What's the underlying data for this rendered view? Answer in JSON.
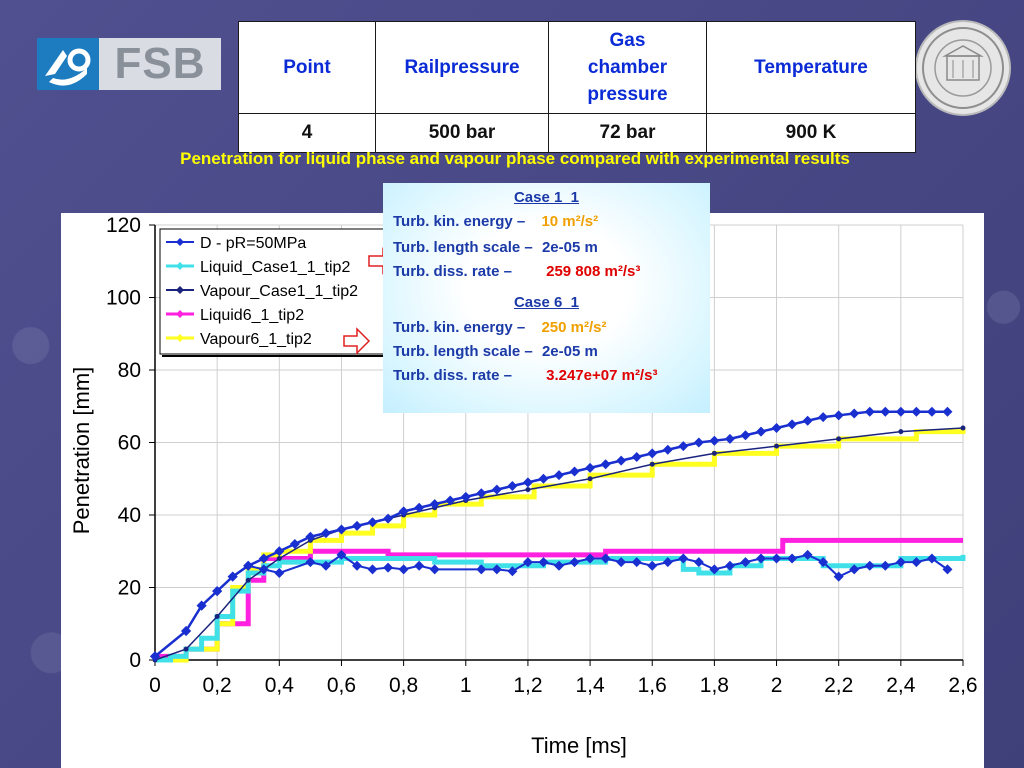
{
  "logo": {
    "text": "FSB"
  },
  "table": {
    "headers": [
      "Point",
      "Railpressure",
      "Gas\nchamber\npressure",
      "Temperature"
    ],
    "values": [
      "4",
      "500 bar",
      "72 bar",
      "900 K"
    ]
  },
  "subtitle": "Penetration for liquid phase and vapour phase compared with experimental  results",
  "cases": [
    {
      "title": "Case 1_1",
      "lines": [
        {
          "label": "Turb. kin. energy –",
          "value": "10 m²/s²",
          "color": "#f0a000"
        },
        {
          "label": "Turb. length scale –",
          "value": "2e-05 m",
          "color": "#1b3aa8"
        },
        {
          "label": "Turb. diss. rate –",
          "value": "259 808 m²/s³",
          "color": "#e00000"
        }
      ]
    },
    {
      "title": "Case 6_1",
      "lines": [
        {
          "label": "Turb. kin. energy –",
          "value": "250 m²/s²",
          "color": "#f0a000"
        },
        {
          "label": "Turb. length scale –",
          "value": "2e-05 m",
          "color": "#1b3aa8"
        },
        {
          "label": "Turb. diss. rate –",
          "value": "3.247e+07 m²/s³",
          "color": "#e00000"
        }
      ]
    }
  ],
  "chart_data": {
    "type": "line",
    "title": "",
    "xlabel": "Time [ms]",
    "ylabel": "Penetration [mm]",
    "xlim": [
      0,
      2.6
    ],
    "ylim": [
      0,
      120
    ],
    "xticks": [
      0,
      0.2,
      0.4,
      0.6,
      0.8,
      1,
      1.2,
      1.4,
      1.6,
      1.8,
      2,
      2.2,
      2.4,
      2.6
    ],
    "xtick_labels": [
      "0",
      "0,2",
      "0,4",
      "0,6",
      "0,8",
      "1",
      "1,2",
      "1,4",
      "1,6",
      "1,8",
      "2",
      "2,2",
      "2,4",
      "2,6"
    ],
    "yticks": [
      0,
      20,
      40,
      60,
      80,
      100,
      120
    ],
    "grid": true,
    "legend_position": "top-left",
    "series": [
      {
        "name": "D - pR=50MPa",
        "color": "#1a2fd0",
        "style": "line-diamond",
        "x": [
          0,
          0.1,
          0.15,
          0.2,
          0.25,
          0.3,
          0.35,
          0.4,
          0.45,
          0.5,
          0.55,
          0.6,
          0.65,
          0.7,
          0.75,
          0.8,
          0.85,
          0.9,
          0.95,
          1,
          1.05,
          1.1,
          1.15,
          1.2,
          1.25,
          1.3,
          1.35,
          1.4,
          1.45,
          1.5,
          1.55,
          1.6,
          1.65,
          1.7,
          1.75,
          1.8,
          1.85,
          1.9,
          1.95,
          2,
          2.05,
          2.1,
          2.15,
          2.2,
          2.25,
          2.3,
          2.35,
          2.4,
          2.45,
          2.5,
          2.55
        ],
        "y": [
          1,
          8,
          15,
          19,
          23,
          26,
          28,
          30,
          32,
          34,
          35,
          36,
          37,
          38,
          39,
          41,
          42,
          43,
          44,
          45,
          46,
          47,
          48,
          49,
          50,
          51,
          52,
          53,
          54,
          55,
          56,
          57,
          58,
          59,
          60,
          60.5,
          61,
          62,
          63,
          64,
          65,
          66,
          67,
          67.5,
          68,
          68.5,
          68.5,
          68.5,
          68.5,
          68.5,
          68.5
        ]
      },
      {
        "name": "Liquid_Case1_1_tip2",
        "color": "#40e0e8",
        "style": "step",
        "x": [
          0,
          0.05,
          0.1,
          0.15,
          0.2,
          0.25,
          0.3,
          0.35,
          0.4,
          0.5,
          0.6,
          0.75,
          0.9,
          1.05,
          1.25,
          1.45,
          1.55,
          1.7,
          1.75,
          1.85,
          1.95,
          2.1,
          2.15,
          2.3,
          2.4,
          2.6
        ],
        "y": [
          0,
          1,
          3,
          6,
          12,
          19,
          24,
          26,
          27,
          27,
          28,
          28,
          27,
          26,
          27,
          28,
          28,
          25,
          24,
          26,
          28,
          28,
          26,
          26,
          28,
          29
        ]
      },
      {
        "name": "Vapour_Case1_1_tip2",
        "color": "#1a237e",
        "style": "line-dot",
        "x": [
          0,
          0.1,
          0.2,
          0.3,
          0.4,
          0.5,
          0.6,
          0.7,
          0.8,
          0.9,
          1,
          1.2,
          1.4,
          1.6,
          1.8,
          2,
          2.2,
          2.4,
          2.6
        ],
        "y": [
          0,
          3,
          12,
          22,
          28,
          33,
          36,
          38,
          40,
          42,
          44,
          47,
          50,
          54,
          57,
          59,
          61,
          63,
          64
        ]
      },
      {
        "name": "Liquid6_1_tip2",
        "color": "#ff20e0",
        "style": "step",
        "x": [
          0,
          0.1,
          0.2,
          0.3,
          0.35,
          0.5,
          0.75,
          1.0,
          1.45,
          1.7,
          2.02,
          2.3,
          2.6
        ],
        "y": [
          1,
          3,
          10,
          22,
          28,
          30,
          29,
          29,
          30,
          30,
          33,
          33,
          33
        ]
      },
      {
        "name": "Vapour6_1_tip2",
        "color": "#ffff20",
        "style": "step",
        "x": [
          0,
          0.1,
          0.2,
          0.25,
          0.3,
          0.35,
          0.4,
          0.5,
          0.6,
          0.7,
          0.8,
          0.9,
          1.05,
          1.22,
          1.4,
          1.6,
          1.8,
          2.0,
          2.2,
          2.45,
          2.6
        ],
        "y": [
          0,
          3,
          10,
          20,
          25,
          29,
          30,
          33,
          35,
          37,
          40,
          43,
          45,
          48,
          51,
          54,
          57,
          59,
          61,
          63,
          64
        ]
      }
    ],
    "experimental_markers": {
      "x": [
        0,
        0.1,
        0.15,
        0.2,
        0.25,
        0.3,
        0.35,
        0.4,
        0.5,
        0.55,
        0.6,
        0.65,
        0.7,
        0.75,
        0.8,
        0.85,
        0.9,
        1.05,
        1.1,
        1.15,
        1.2,
        1.25,
        1.3,
        1.35,
        1.4,
        1.45,
        1.5,
        1.55,
        1.6,
        1.65,
        1.7,
        1.75,
        1.8,
        1.85,
        1.9,
        1.95,
        2.0,
        2.05,
        2.1,
        2.15,
        2.2,
        2.25,
        2.3,
        2.35,
        2.4,
        2.45,
        2.5,
        2.55
      ],
      "y": [
        1,
        8,
        15,
        19,
        23,
        26,
        25,
        24,
        27,
        26,
        29,
        26,
        25,
        25.5,
        25,
        26,
        25,
        25,
        25,
        24.5,
        27,
        27,
        26,
        27,
        28,
        28,
        27,
        27,
        26,
        27,
        28,
        27,
        25,
        26,
        27,
        28,
        28,
        28,
        29,
        27,
        23,
        25,
        26,
        26,
        27,
        27,
        28,
        25
      ]
    }
  }
}
